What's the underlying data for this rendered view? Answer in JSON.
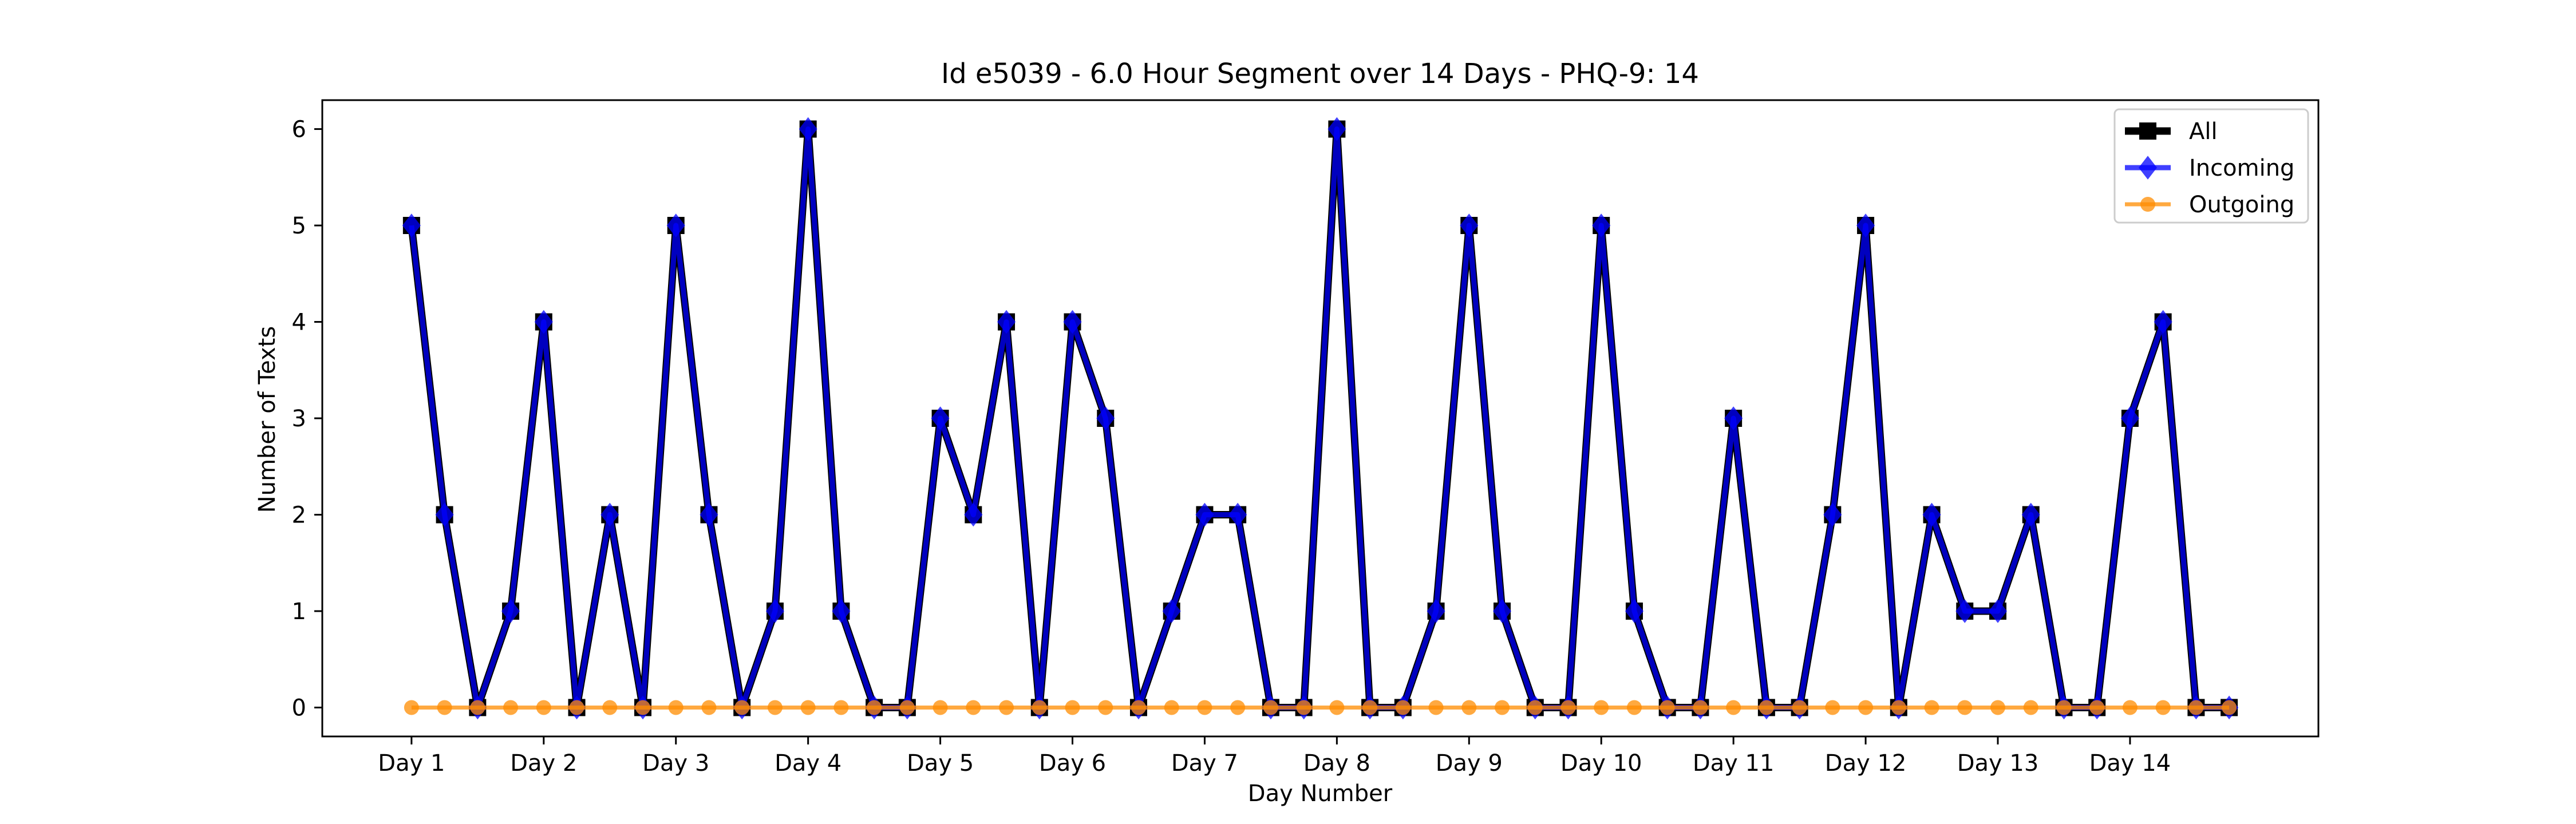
{
  "chart_data": {
    "type": "line",
    "title": "Id e5039 - 6.0 Hour Segment over 14 Days - PHQ-9: 14",
    "xlabel": "Day Number",
    "ylabel": "Number of Texts",
    "x": [
      0,
      1,
      2,
      3,
      4,
      5,
      6,
      7,
      8,
      9,
      10,
      11,
      12,
      13,
      14,
      15,
      16,
      17,
      18,
      19,
      20,
      21,
      22,
      23,
      24,
      25,
      26,
      27,
      28,
      29,
      30,
      31,
      32,
      33,
      34,
      35,
      36,
      37,
      38,
      39,
      40,
      41,
      42,
      43,
      44,
      45,
      46,
      47,
      48,
      49,
      50,
      51,
      52,
      53,
      54,
      55
    ],
    "xlim": [
      -2.7,
      57.7
    ],
    "ylim": [
      -0.3,
      6.3
    ],
    "xticks": [
      0,
      4,
      8,
      12,
      16,
      20,
      24,
      28,
      32,
      36,
      40,
      44,
      48,
      52
    ],
    "xticklabels": [
      "Day 1",
      "Day 2",
      "Day 3",
      "Day 4",
      "Day 5",
      "Day 6",
      "Day 7",
      "Day 8",
      "Day 9",
      "Day 10",
      "Day 11",
      "Day 12",
      "Day 13",
      "Day 14"
    ],
    "yticks": [
      0,
      1,
      2,
      3,
      4,
      5,
      6
    ],
    "yticklabels": [
      "0",
      "1",
      "2",
      "3",
      "4",
      "5",
      "6"
    ],
    "grid": false,
    "legend_position": "top-right",
    "series": [
      {
        "name": "All",
        "color": "#000000",
        "marker": "square",
        "values": [
          5,
          2,
          0,
          1,
          4,
          0,
          2,
          0,
          5,
          2,
          0,
          1,
          6,
          1,
          0,
          0,
          3,
          2,
          4,
          0,
          4,
          3,
          0,
          1,
          2,
          2,
          0,
          0,
          6,
          0,
          0,
          1,
          5,
          1,
          0,
          0,
          5,
          1,
          0,
          0,
          3,
          0,
          0,
          2,
          5,
          0,
          2,
          1,
          1,
          2,
          0,
          0,
          3,
          4,
          0,
          0
        ]
      },
      {
        "name": "Incoming",
        "color": "#0000ff",
        "marker": "diamond",
        "values": [
          5,
          2,
          0,
          1,
          4,
          0,
          2,
          0,
          5,
          2,
          0,
          1,
          6,
          1,
          0,
          0,
          3,
          2,
          4,
          0,
          4,
          3,
          0,
          1,
          2,
          2,
          0,
          0,
          6,
          0,
          0,
          1,
          5,
          1,
          0,
          0,
          5,
          1,
          0,
          0,
          3,
          0,
          0,
          2,
          5,
          0,
          2,
          1,
          1,
          2,
          0,
          0,
          3,
          4,
          0,
          0
        ]
      },
      {
        "name": "Outgoing",
        "color": "#ff8c00",
        "marker": "circle",
        "values": [
          0,
          0,
          0,
          0,
          0,
          0,
          0,
          0,
          0,
          0,
          0,
          0,
          0,
          0,
          0,
          0,
          0,
          0,
          0,
          0,
          0,
          0,
          0,
          0,
          0,
          0,
          0,
          0,
          0,
          0,
          0,
          0,
          0,
          0,
          0,
          0,
          0,
          0,
          0,
          0,
          0,
          0,
          0,
          0,
          0,
          0,
          0,
          0,
          0,
          0,
          0,
          0,
          0,
          0,
          0,
          0
        ]
      }
    ]
  }
}
